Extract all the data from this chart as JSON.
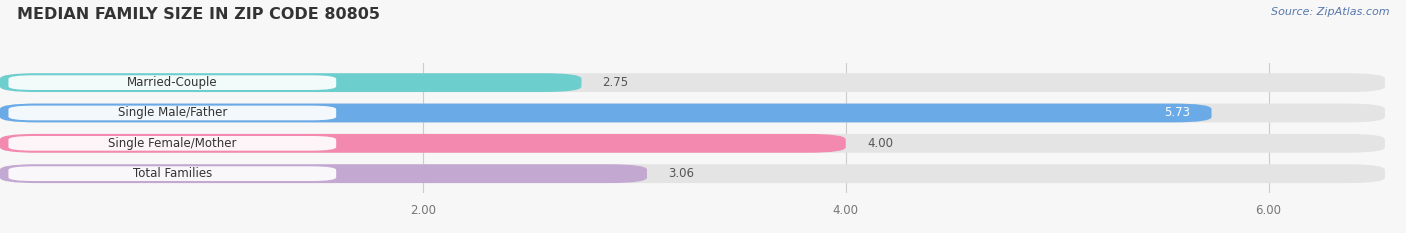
{
  "title": "MEDIAN FAMILY SIZE IN ZIP CODE 80805",
  "source": "Source: ZipAtlas.com",
  "categories": [
    "Married-Couple",
    "Single Male/Father",
    "Single Female/Mother",
    "Total Families"
  ],
  "values": [
    2.75,
    5.73,
    4.0,
    3.06
  ],
  "bar_colors": [
    "#6dcece",
    "#6aaae6",
    "#f489b0",
    "#c3a8d1"
  ],
  "value_label_colors": [
    "#555555",
    "#ffffff",
    "#555555",
    "#555555"
  ],
  "xticks": [
    2.0,
    4.0,
    6.0
  ],
  "xtick_labels": [
    "2.00",
    "4.00",
    "6.00"
  ],
  "xlim": [
    0.0,
    6.55
  ],
  "background_color": "#f7f7f7",
  "bar_bg_color": "#e4e4e4",
  "title_fontsize": 11.5,
  "label_fontsize": 8.5,
  "value_fontsize": 8.5,
  "source_fontsize": 8.0,
  "bar_height": 0.62,
  "bar_gap": 1.0
}
